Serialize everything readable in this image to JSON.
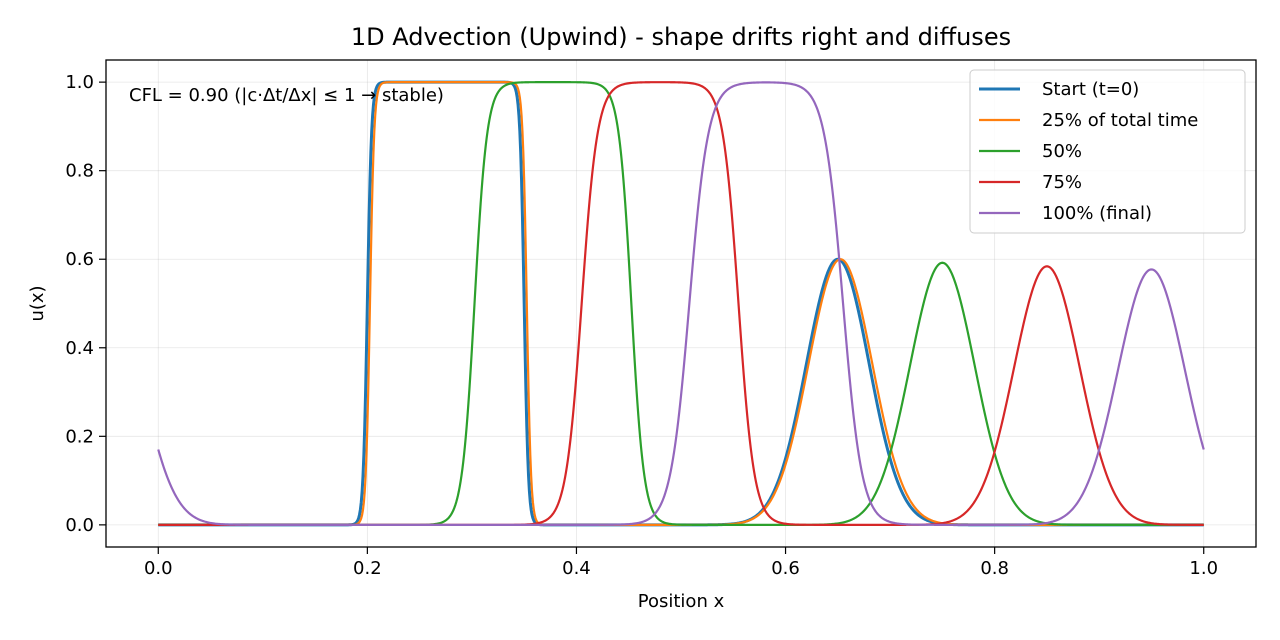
{
  "chart_data": {
    "type": "line",
    "title": "1D Advection (Upwind) - shape drifts right and diffuses",
    "xlabel": "Position x",
    "ylabel": "u(x)",
    "xlim": [
      -0.05,
      1.05
    ],
    "ylim": [
      -0.05,
      1.05
    ],
    "x_ticks": [
      0.0,
      0.2,
      0.4,
      0.6,
      0.8,
      1.0
    ],
    "x_tick_labels": [
      "0.0",
      "0.2",
      "0.4",
      "0.6",
      "0.8",
      "1.0"
    ],
    "y_ticks": [
      0.0,
      0.2,
      0.4,
      0.6,
      0.8,
      1.0
    ],
    "y_tick_labels": [
      "0.0",
      "0.2",
      "0.4",
      "0.6",
      "0.8",
      "1.0"
    ],
    "grid": true,
    "legend_position": "top-right",
    "annotation": "CFL = 0.90  (|c·Δt/Δx| ≤ 1 → stable)",
    "series": [
      {
        "name": "Start (t=0)",
        "color": "#1f77b4",
        "width": 3,
        "box": {
          "start": 0.2,
          "end": 0.35,
          "edge": 0.002
        },
        "gauss": {
          "center": 0.65,
          "amp": 0.6,
          "sigma": 0.03
        },
        "wrap": false
      },
      {
        "name": "25% of total time",
        "color": "#ff7f0e",
        "width": 2.2,
        "box": {
          "start": 0.2025,
          "end": 0.3525,
          "edge": 0.002
        },
        "gauss": {
          "center": 0.6525,
          "amp": 0.6,
          "sigma": 0.0305
        },
        "wrap": false
      },
      {
        "name": "50%",
        "color": "#2ca02c",
        "width": 2.2,
        "box": {
          "start": 0.3025,
          "end": 0.4525,
          "edge": 0.006
        },
        "gauss": {
          "center": 0.75,
          "amp": 0.592,
          "sigma": 0.031
        },
        "wrap": false
      },
      {
        "name": "75%",
        "color": "#d62728",
        "width": 2.2,
        "box": {
          "start": 0.405,
          "end": 0.555,
          "edge": 0.0075
        },
        "gauss": {
          "center": 0.85,
          "amp": 0.584,
          "sigma": 0.0315
        },
        "wrap": false
      },
      {
        "name": "100% (final)",
        "color": "#9467bd",
        "width": 2.2,
        "box": {
          "start": 0.508,
          "end": 0.655,
          "edge": 0.009
        },
        "gauss": {
          "center": 0.95,
          "amp": 0.577,
          "sigma": 0.032
        },
        "wrap": true
      }
    ]
  }
}
